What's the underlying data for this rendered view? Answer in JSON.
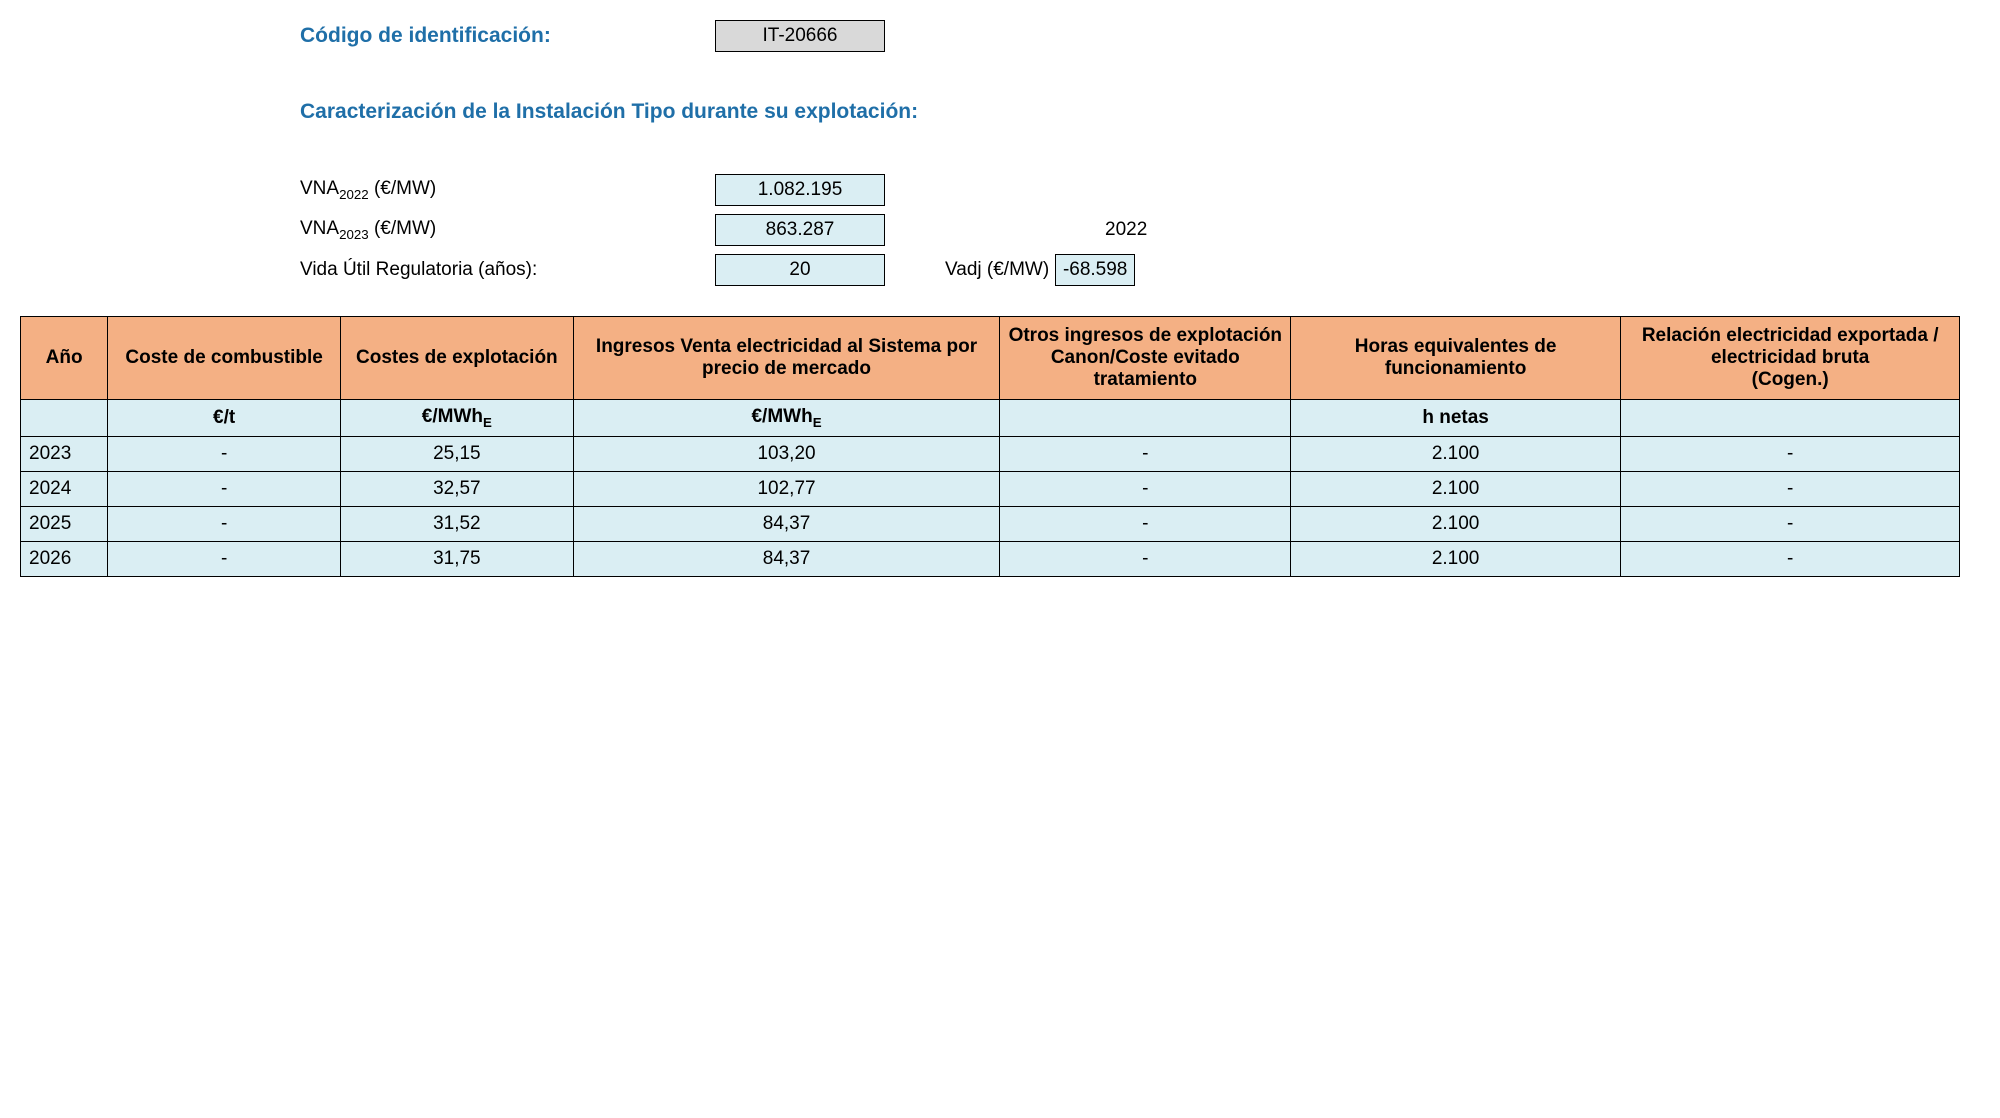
{
  "header": {
    "codigo_label": "Código de identificación:",
    "codigo_value": "IT-20666",
    "caracterizacion_label": "Caracterización de la Instalación Tipo durante su explotación:",
    "vna2022_label_prefix": "VNA",
    "vna2022_label_sub": "2022",
    "vna2022_label_suffix": " (€/MW)",
    "vna2022_value": "1.082.195",
    "vna2023_label_prefix": "VNA",
    "vna2023_label_sub": "2023",
    "vna2023_label_suffix": " (€/MW)",
    "vna2023_value": "863.287",
    "year_right": "2022",
    "vida_label": "Vida Útil Regulatoria (años):",
    "vida_value": "20",
    "vadj_label": "Vadj (€/MW)",
    "vadj_value": "-68.598"
  },
  "table": {
    "columns": [
      "Año",
      "Coste de combustible",
      "Costes de explotación",
      "Ingresos Venta electricidad al Sistema por precio de mercado",
      "Otros ingresos de explotación Canon/Coste evitado tratamiento",
      "Horas equivalentes de funcionamiento",
      "Relación electricidad exportada / electricidad bruta\n(Cogen.)"
    ],
    "col_widths": [
      "4.5%",
      "12%",
      "12%",
      "22%",
      "15%",
      "17%",
      "17.5%"
    ],
    "units": [
      "",
      "€/t",
      "€/MWh",
      "€/MWh",
      "",
      "h netas",
      ""
    ],
    "units_has_subE": [
      false,
      false,
      true,
      true,
      false,
      false,
      false
    ],
    "rows": [
      [
        "2023",
        "-",
        "25,15",
        "103,20",
        "-",
        "2.100",
        "-"
      ],
      [
        "2024",
        "-",
        "32,57",
        "102,77",
        "-",
        "2.100",
        "-"
      ],
      [
        "2025",
        "-",
        "31,52",
        "84,37",
        "-",
        "2.100",
        "-"
      ],
      [
        "2026",
        "-",
        "31,75",
        "84,37",
        "-",
        "2.100",
        "-"
      ]
    ]
  },
  "colors": {
    "heading": "#1f6fa8",
    "table_header_bg": "#f4b084",
    "cell_bg": "#daeef3",
    "gray_bg": "#d9d9d9",
    "border": "#000000",
    "text": "#000000",
    "background": "#ffffff"
  }
}
